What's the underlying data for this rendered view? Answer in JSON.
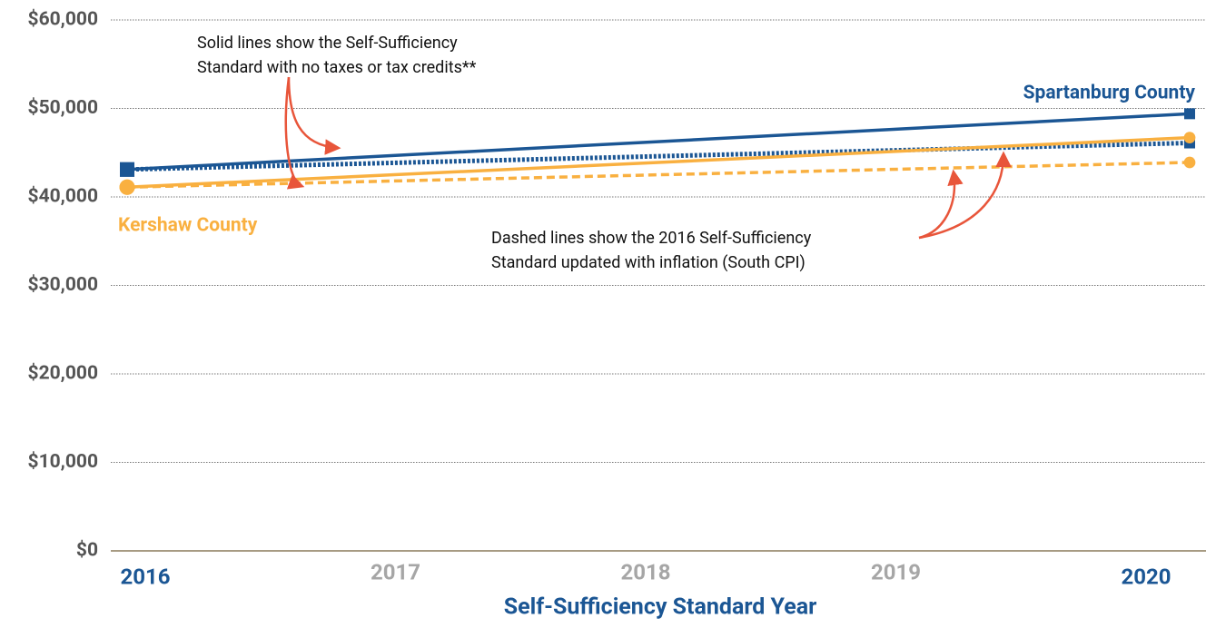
{
  "chart_data": {
    "type": "line",
    "x_label": "Self-Sufficiency Standard Year",
    "x": [
      2016,
      2020
    ],
    "xlim": [
      2016,
      2020
    ],
    "xticks": [
      2016,
      2017,
      2018,
      2019,
      2020
    ],
    "ylim": [
      0,
      60000
    ],
    "yticks": [
      {
        "value": 0,
        "label": "$0"
      },
      {
        "value": 10000,
        "label": "$10,000"
      },
      {
        "value": 20000,
        "label": "$20,000"
      },
      {
        "value": 30000,
        "label": "$30,000"
      },
      {
        "value": 40000,
        "label": "$40,000"
      },
      {
        "value": 50000,
        "label": "$50,000"
      },
      {
        "value": 60000,
        "label": "$60,000"
      }
    ],
    "grid": true,
    "series": [
      {
        "name": "Spartanburg County",
        "color": "#1b5694",
        "dash": "solid",
        "marker": "square",
        "values": [
          43100,
          49400
        ]
      },
      {
        "color": "#1b5694",
        "dash": "dotted",
        "marker": "square",
        "values": [
          43100,
          46100
        ]
      },
      {
        "name": "Kershaw County",
        "color": "#f9b040",
        "dash": "solid",
        "marker": "circle",
        "values": [
          41100,
          46700
        ]
      },
      {
        "color": "#f9b040",
        "dash": "dashed",
        "marker": "circle",
        "values": [
          41100,
          43900
        ]
      }
    ],
    "annotations": [
      {
        "lines": [
          "Solid lines show the Self-Sufficiency",
          "Standard with no taxes or tax credits**"
        ]
      },
      {
        "lines": [
          "Dashed lines show the 2016 Self-Sufficiency",
          "Standard updated with inflation (South CPI)"
        ]
      }
    ]
  }
}
